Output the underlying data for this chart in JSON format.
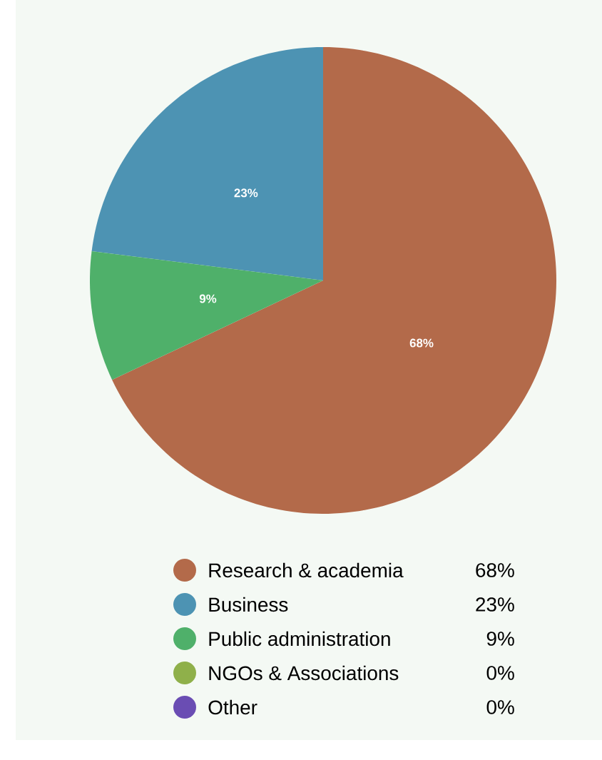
{
  "chart_data": {
    "type": "pie",
    "categories": [
      "Research & academia",
      "Business",
      "Public administration",
      "NGOs & Associations",
      "Other"
    ],
    "values": [
      68,
      23,
      9,
      0,
      0
    ],
    "colors": [
      "#b36a4a",
      "#4d93b3",
      "#4fb06a",
      "#8fb04a",
      "#6a4db3"
    ],
    "value_labels": [
      "68%",
      "23%",
      "9%",
      "0%",
      "0%"
    ],
    "legend": "bottom"
  }
}
